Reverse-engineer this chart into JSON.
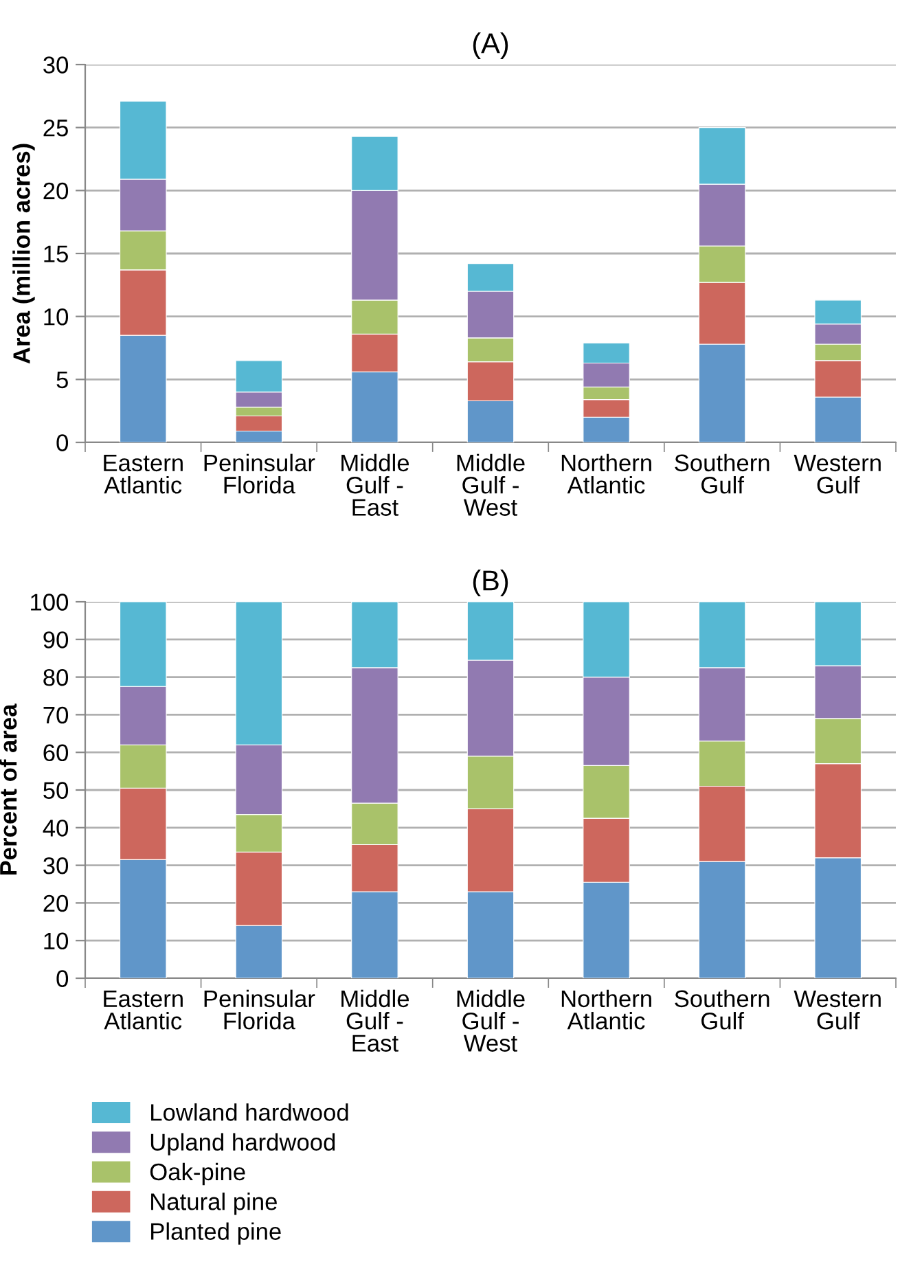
{
  "chart_data": [
    {
      "type": "bar",
      "title": "(A)",
      "ylabel": "Area (million acres)",
      "stacked": true,
      "grid": "y",
      "categories": [
        "Eastern\nAtlantic",
        "Peninsular\nFlorida",
        "Middle\nGulf -\nEast",
        "Middle\nGulf -\nWest",
        "Northern\nAtlantic",
        "Southern\nGulf",
        "Western\nGulf"
      ],
      "ylim": [
        0,
        30
      ],
      "yticks": [
        0,
        5,
        10,
        15,
        20,
        25,
        30
      ],
      "series": [
        {
          "color": "#6096c9",
          "values": [
            8.5,
            0.9,
            5.6,
            3.3,
            2.0,
            7.8,
            3.6
          ]
        },
        {
          "color": "#cd675d",
          "values": [
            5.2,
            1.2,
            3.0,
            3.1,
            1.4,
            4.9,
            2.9
          ]
        },
        {
          "color": "#a9c26a",
          "values": [
            3.1,
            0.7,
            2.7,
            1.9,
            1.0,
            2.9,
            1.3
          ]
        },
        {
          "color": "#917ab1",
          "values": [
            4.1,
            1.2,
            8.7,
            3.7,
            1.9,
            4.9,
            1.6
          ]
        },
        {
          "color": "#56b8d3",
          "values": [
            6.2,
            2.5,
            4.3,
            2.2,
            1.6,
            4.5,
            1.9
          ]
        }
      ]
    },
    {
      "type": "bar",
      "title": "(B)",
      "ylabel": "Percent of area",
      "stacked": true,
      "grid": "y",
      "legend": "bottom",
      "categories": [
        "Eastern\nAtlantic",
        "Peninsular\nFlorida",
        "Middle\nGulf -\nEast",
        "Middle\nGulf -\nWest",
        "Northern\nAtlantic",
        "Southern\nGulf",
        "Western\nGulf"
      ],
      "ylim": [
        0,
        100
      ],
      "yticks": [
        0,
        10,
        20,
        30,
        40,
        50,
        60,
        70,
        80,
        90,
        100
      ],
      "series": [
        {
          "name": "Planted pine",
          "color": "#6096c9",
          "values": [
            31.5,
            14,
            23,
            23,
            25.5,
            31,
            32
          ]
        },
        {
          "name": "Natural pine",
          "color": "#cd675d",
          "values": [
            19,
            19.5,
            12.5,
            22,
            17,
            20,
            25
          ]
        },
        {
          "name": "Oak-pine",
          "color": "#a9c26a",
          "values": [
            11.5,
            10,
            11,
            14,
            14,
            12,
            12
          ]
        },
        {
          "name": "Upland hardwood",
          "color": "#917ab1",
          "values": [
            15.5,
            18.5,
            36,
            25.5,
            23.5,
            19.5,
            14
          ]
        },
        {
          "name": "Lowland hardwood",
          "color": "#56b8d3",
          "values": [
            22.5,
            38,
            17.5,
            15.5,
            20,
            17.5,
            17
          ]
        }
      ]
    }
  ]
}
